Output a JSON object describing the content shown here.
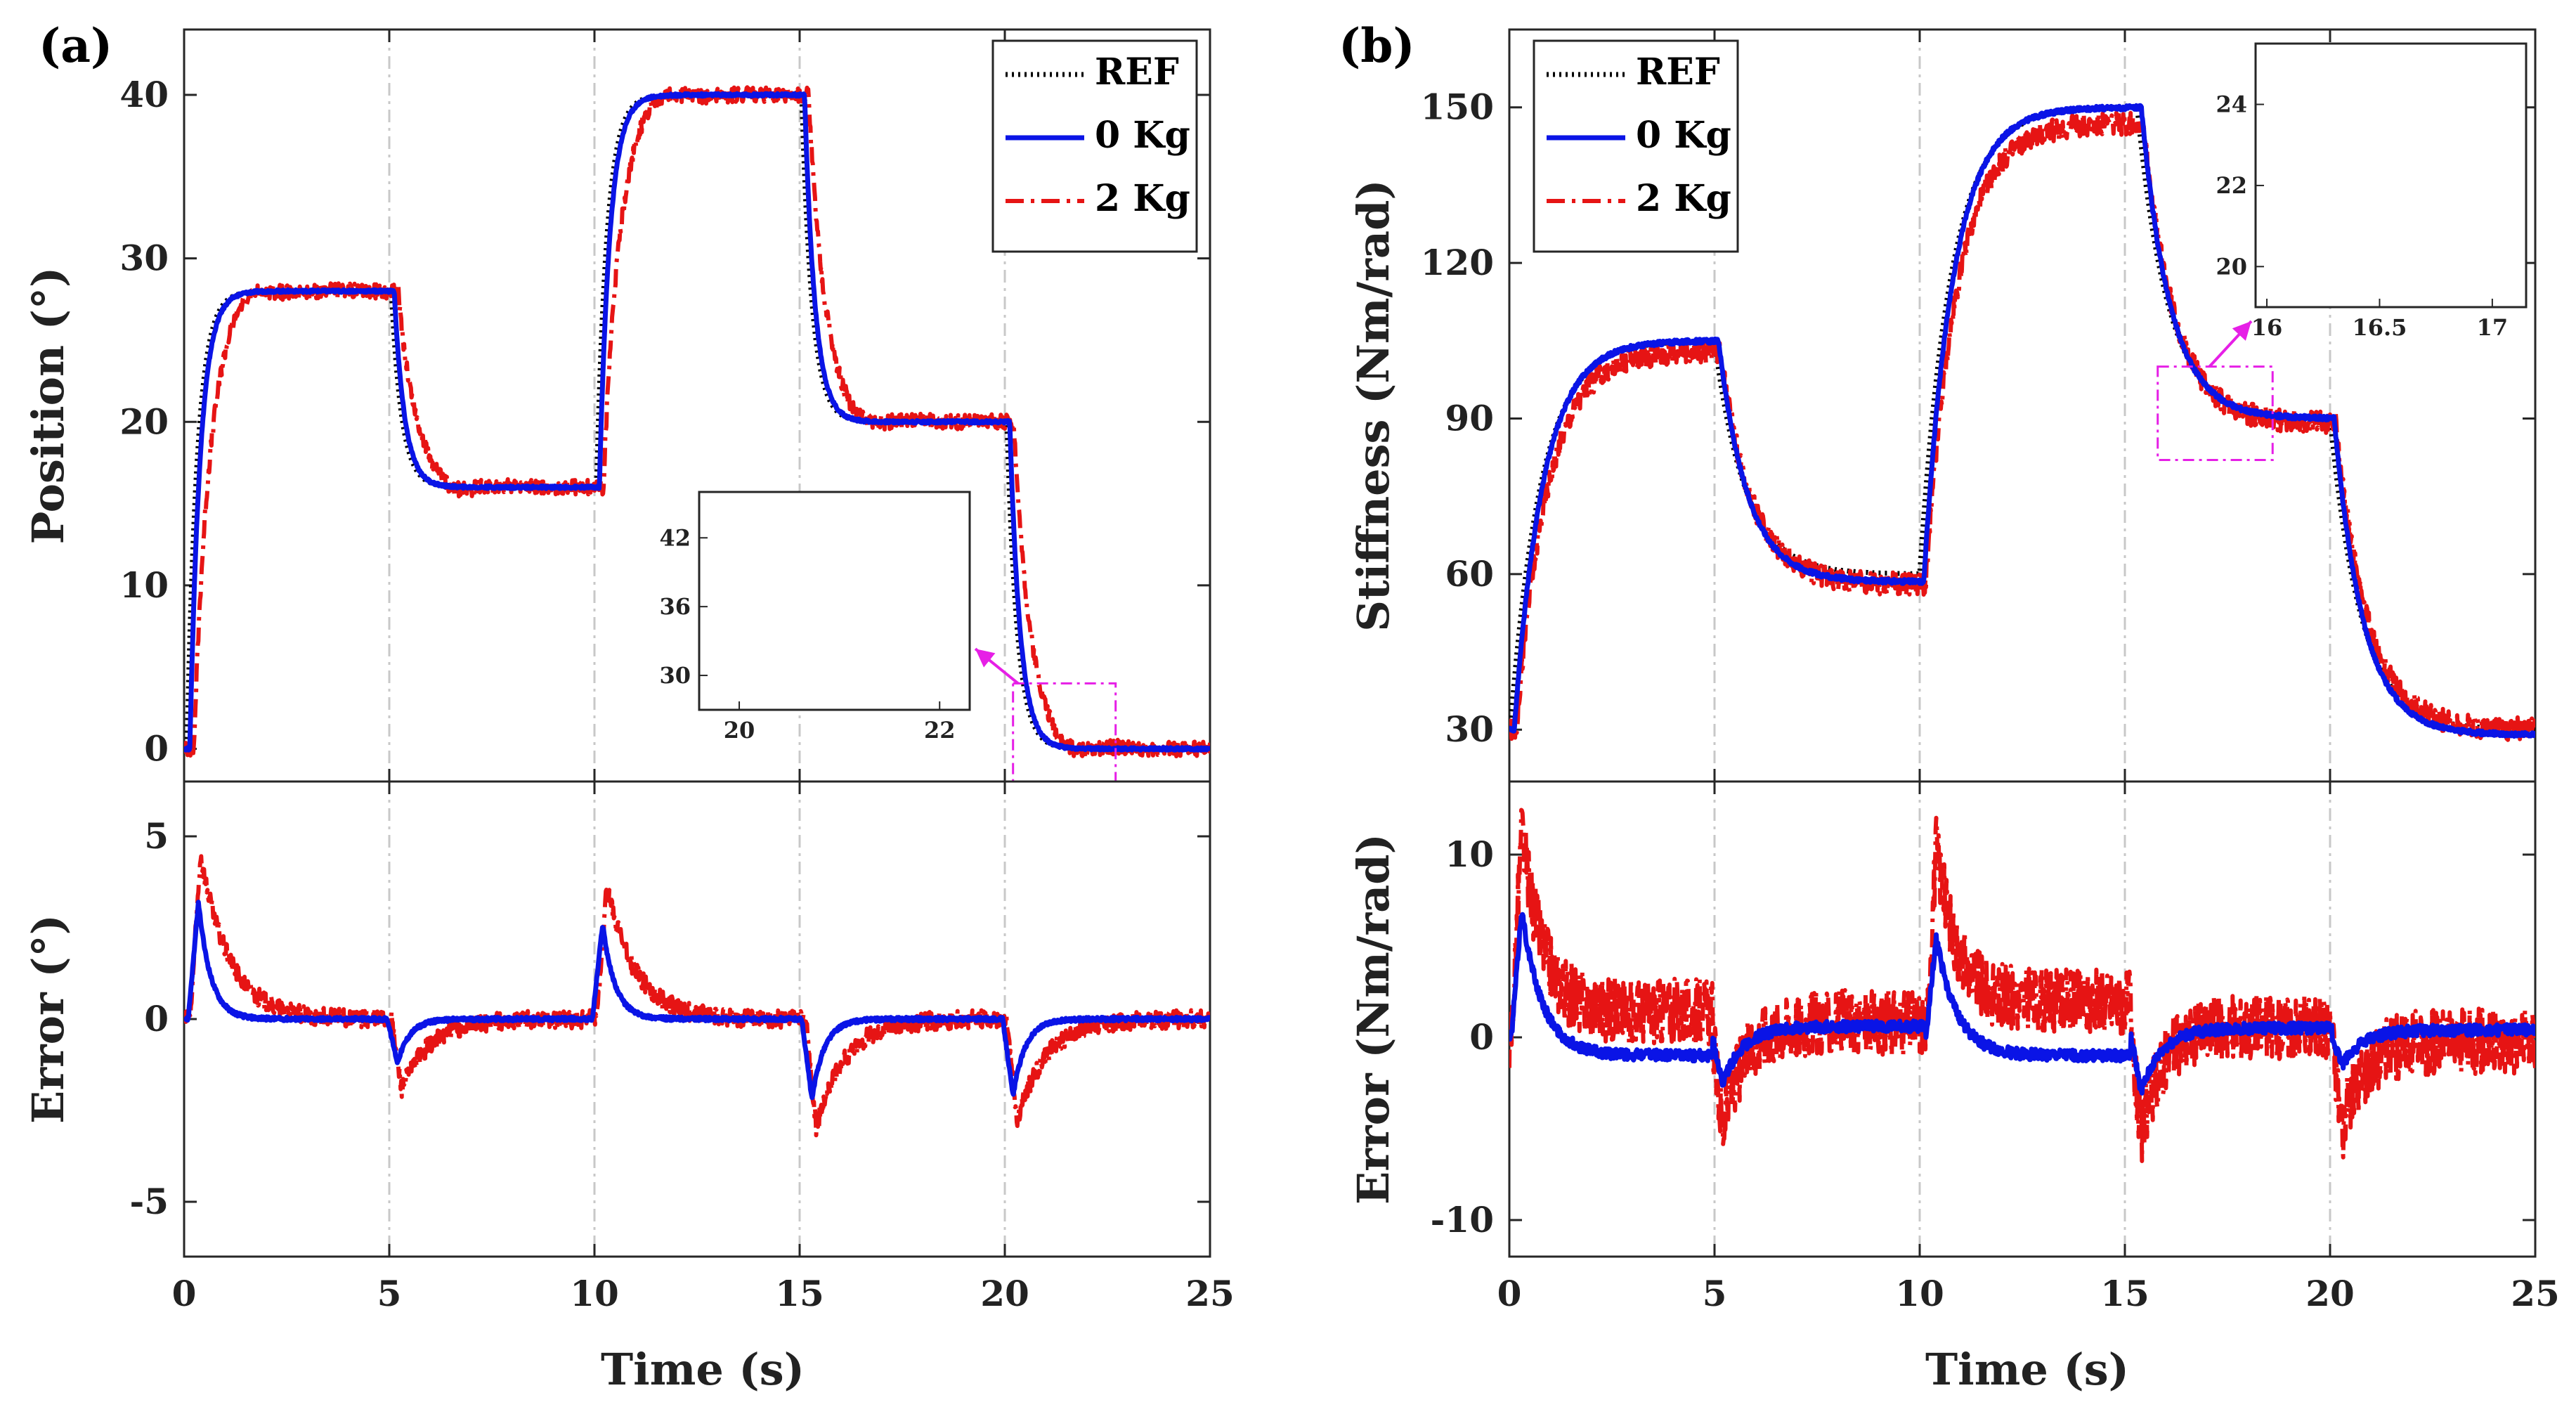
{
  "figure": {
    "panel_a_tag": "(a)",
    "panel_b_tag": "(b)",
    "xlabel": "Time (s)"
  },
  "colors": {
    "ref": "#000000",
    "kg0": "#0a14e6",
    "kg2": "#e61414",
    "zoom_box": "#e61fe6",
    "grid": "#c8c8c8"
  },
  "chart_data": [
    {
      "id": "a-top",
      "type": "line",
      "panel": "(a)",
      "ylabel": "Position (°)",
      "xlabel": "",
      "xlim": [
        0,
        25
      ],
      "ylim": [
        -2,
        44
      ],
      "xticks": [
        0,
        5,
        10,
        15,
        20,
        25
      ],
      "yticks": [
        0,
        10,
        20,
        30,
        40
      ],
      "grid": "vertical dash-dot at 5 s steps",
      "legend": {
        "position": "top-right",
        "entries": [
          "REF",
          "0 Kg",
          "2 Kg"
        ]
      },
      "steps": [
        [
          0,
          0
        ],
        [
          0.02,
          28
        ],
        [
          5,
          16
        ],
        [
          10,
          40
        ],
        [
          15,
          20
        ],
        [
          20,
          0
        ]
      ],
      "series": [
        {
          "name": "REF",
          "tau": 0.25,
          "delay": 0.05,
          "overshoot": 0,
          "noise": 0
        },
        {
          "name": "0 Kg",
          "tau": 0.25,
          "delay": 0.12,
          "overshoot": 0,
          "noise": 0.08
        },
        {
          "name": "2 Kg",
          "tau": 0.35,
          "delay": 0.22,
          "overshoot": 1.6,
          "noise": 0.45
        }
      ],
      "zoom_region": {
        "x": [
          20.2,
          22.7
        ],
        "y": [
          -2,
          4
        ]
      },
      "inset": {
        "xlim": [
          19.6,
          22.3
        ],
        "ylim": [
          27,
          46
        ],
        "xticks": [
          20,
          22
        ],
        "yticks": [
          30,
          36,
          42
        ]
      }
    },
    {
      "id": "a-bottom",
      "type": "line",
      "panel": "(a)",
      "ylabel": "Error (°)",
      "xlabel": "Time (s)",
      "xlim": [
        0,
        25
      ],
      "ylim": [
        -6.5,
        6.5
      ],
      "xticks": [
        0,
        5,
        10,
        15,
        20,
        25
      ],
      "yticks": [
        -5,
        0,
        5
      ],
      "series": [
        {
          "name": "0 Kg",
          "peaks": [
            [
              0.35,
              3.2
            ],
            [
              5.2,
              -1.2
            ],
            [
              10.2,
              2.6
            ],
            [
              15.3,
              -2.2
            ],
            [
              20.2,
              -2.1
            ]
          ],
          "decay": 0.3,
          "noise": 0.05
        },
        {
          "name": "2 Kg",
          "peaks": [
            [
              0.4,
              4.5
            ],
            [
              5.3,
              -1.9
            ],
            [
              10.3,
              3.6
            ],
            [
              15.4,
              -3.0
            ],
            [
              20.3,
              -2.8
            ]
          ],
          "decay": 0.7,
          "noise": 0.25
        }
      ]
    },
    {
      "id": "b-top",
      "type": "line",
      "panel": "(b)",
      "ylabel": "Stiffness (Nm/rad)",
      "xlabel": "",
      "xlim": [
        0,
        25
      ],
      "ylim": [
        20,
        165
      ],
      "xticks": [
        0,
        5,
        10,
        15,
        20,
        25
      ],
      "yticks": [
        30,
        60,
        90,
        120,
        150
      ],
      "legend": {
        "position": "top-left",
        "entries": [
          "REF",
          "0 Kg",
          "2 Kg"
        ]
      },
      "steps": [
        [
          0,
          30
        ],
        [
          0.02,
          105
        ],
        [
          5,
          60
        ],
        [
          10,
          150
        ],
        [
          15.3,
          90
        ],
        [
          20,
          30
        ]
      ],
      "series": [
        {
          "name": "REF",
          "tau": 0.75,
          "delay": 0.0,
          "offsets": [
            0,
            0,
            0,
            0,
            0
          ],
          "noise": 0
        },
        {
          "name": "0 Kg",
          "tau": 0.7,
          "delay": 0.1,
          "offsets": [
            0,
            -1.5,
            0,
            0,
            -1
          ],
          "noise": 0.4
        },
        {
          "name": "2 Kg",
          "tau": 0.75,
          "delay": 0.15,
          "offsets": [
            -2,
            -2,
            -3,
            -1,
            0
          ],
          "noise": 2.2
        }
      ],
      "zoom_region": {
        "x": [
          15.8,
          18.6
        ],
        "y": [
          82,
          100
        ]
      },
      "inset": {
        "xlim": [
          15.95,
          17.15
        ],
        "ylim": [
          19,
          25.5
        ],
        "xticks": [
          16,
          16.5,
          17
        ],
        "yticks": [
          20,
          22,
          24
        ]
      }
    },
    {
      "id": "b-bottom",
      "type": "line",
      "panel": "(b)",
      "ylabel": "Error (Nm/rad)",
      "xlabel": "Time (s)",
      "xlim": [
        0,
        25
      ],
      "ylim": [
        -12,
        14
      ],
      "xticks": [
        0,
        5,
        10,
        15,
        20,
        25
      ],
      "yticks": [
        -10,
        0,
        10
      ],
      "series": [
        {
          "name": "0 Kg",
          "peaks": [
            [
              0.3,
              7
            ],
            [
              5.2,
              -2.5
            ],
            [
              10.4,
              5.5
            ],
            [
              15.4,
              -3
            ],
            [
              20.3,
              -1.5
            ]
          ],
          "levels": [
            -1,
            0.6,
            -1,
            0.5,
            0.4
          ],
          "noise": 0.3
        },
        {
          "name": "2 Kg",
          "peaks": [
            [
              0.3,
              11.5
            ],
            [
              5.2,
              -5
            ],
            [
              10.4,
              10.5
            ],
            [
              15.4,
              -5.5
            ],
            [
              20.3,
              -5
            ]
          ],
          "levels": [
            1.4,
            0.8,
            1.9,
            0.6,
            -0.2
          ],
          "noise": 1.8
        }
      ]
    }
  ]
}
